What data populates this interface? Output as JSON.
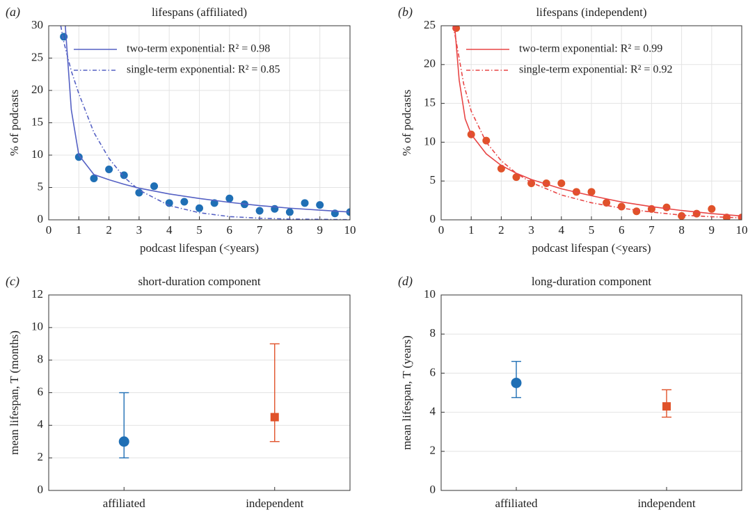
{
  "chart_data": [
    {
      "type": "scatter",
      "panel": "(a)",
      "title": "lifespans (affiliated)",
      "x_label": "podcast lifespan (<years)",
      "y_label": "% of podcasts",
      "xlim": [
        0,
        10
      ],
      "ylim": [
        0,
        30
      ],
      "xticks": [
        0,
        1,
        2,
        3,
        4,
        5,
        6,
        7,
        8,
        9,
        10
      ],
      "yticks": [
        0,
        5,
        10,
        15,
        20,
        25,
        30
      ],
      "grid": true,
      "legend": "upper right",
      "series": [
        {
          "kind": "points",
          "color": "#1f6fb5",
          "x": [
            0.5,
            1,
            1.5,
            2,
            2.5,
            3,
            3.5,
            4,
            4.5,
            5,
            5.5,
            6,
            6.5,
            7,
            7.5,
            8,
            8.5,
            9,
            9.5,
            10
          ],
          "values": [
            28.3,
            9.7,
            6.4,
            7.8,
            6.9,
            4.2,
            5.2,
            2.6,
            2.8,
            1.8,
            2.6,
            3.3,
            2.4,
            1.4,
            1.7,
            1.2,
            2.6,
            2.3,
            1.0,
            1.2
          ]
        },
        {
          "kind": "line",
          "name": "two-term exponential: R² = 0.98",
          "color": "#5561c4",
          "line_style": "solid",
          "x": [
            0.55,
            0.75,
            1,
            1.5,
            2,
            2.5,
            3,
            4,
            5,
            6,
            7,
            8,
            9,
            10
          ],
          "values": [
            30,
            17,
            10,
            7,
            6.2,
            5.5,
            4.9,
            4,
            3.3,
            2.7,
            2.2,
            1.8,
            1.5,
            1.2
          ]
        },
        {
          "kind": "line",
          "name": "single-term exponential: R² = 0.85",
          "color": "#5561c4",
          "line_style": "dashdot",
          "x": [
            0.4,
            0.5,
            0.75,
            1,
            1.5,
            2,
            2.5,
            3,
            4,
            5,
            6,
            7,
            8,
            10
          ],
          "values": [
            30,
            27.5,
            23,
            19.5,
            13.5,
            9.5,
            6.6,
            4.6,
            2.2,
            1.1,
            0.5,
            0.25,
            0.12,
            0.03
          ]
        }
      ]
    },
    {
      "type": "scatter",
      "panel": "(b)",
      "title": "lifespans (independent)",
      "x_label": "podcast lifespan (<years)",
      "y_label": "% of podcasts",
      "xlim": [
        0,
        10
      ],
      "ylim": [
        0,
        25
      ],
      "xticks": [
        0,
        1,
        2,
        3,
        4,
        5,
        6,
        7,
        8,
        9,
        10
      ],
      "yticks": [
        0,
        5,
        10,
        15,
        20,
        25
      ],
      "grid": true,
      "legend": "upper right",
      "series": [
        {
          "kind": "points",
          "color": "#e0522a",
          "x": [
            0.5,
            1,
            1.5,
            2,
            2.5,
            3,
            3.5,
            4,
            4.5,
            5,
            5.5,
            6,
            6.5,
            7,
            7.5,
            8,
            8.5,
            9,
            9.5,
            10
          ],
          "values": [
            24.7,
            11.0,
            10.2,
            6.6,
            5.5,
            4.7,
            4.7,
            4.7,
            3.6,
            3.6,
            2.2,
            1.7,
            1.1,
            1.4,
            1.6,
            0.5,
            0.8,
            1.4,
            0.3,
            0.3
          ]
        },
        {
          "kind": "line",
          "name": "two-term exponential: R² = 0.99",
          "color": "#e84545",
          "line_style": "solid",
          "x": [
            0.45,
            0.6,
            0.8,
            1,
            1.5,
            2,
            2.5,
            3,
            4,
            5,
            6,
            7,
            8,
            9,
            10
          ],
          "values": [
            25,
            18,
            13,
            11,
            8.5,
            7,
            6,
            5.2,
            4,
            3.1,
            2.3,
            1.7,
            1.2,
            0.8,
            0.5
          ]
        },
        {
          "kind": "line",
          "name": "single-term exponential: R² = 0.92",
          "color": "#e84545",
          "line_style": "dashdot",
          "x": [
            0.4,
            0.5,
            0.75,
            1,
            1.5,
            2,
            2.5,
            3,
            4,
            5,
            6,
            7,
            8,
            9,
            10
          ],
          "values": [
            25,
            23,
            17.5,
            14,
            10,
            7.6,
            6.0,
            4.8,
            3.2,
            2.2,
            1.5,
            1.0,
            0.6,
            0.4,
            0.25
          ]
        }
      ]
    },
    {
      "type": "errorbar",
      "panel": "(c)",
      "title": "short-duration component",
      "y_label": "mean lifespan, T (months)",
      "categories": [
        "affiliated",
        "independent"
      ],
      "values": [
        3,
        4.5
      ],
      "lower": [
        2,
        3
      ],
      "upper": [
        6,
        9
      ],
      "colors": [
        "#1f6fb5",
        "#e0522a"
      ],
      "markers": [
        "circle",
        "square"
      ],
      "ylim": [
        0,
        12
      ],
      "yticks": [
        0,
        2,
        4,
        6,
        8,
        10,
        12
      ],
      "grid": true
    },
    {
      "type": "errorbar",
      "panel": "(d)",
      "title": "long-duration component",
      "y_label": "mean lifespan, T (years)",
      "categories": [
        "affiliated",
        "independent"
      ],
      "values": [
        5.5,
        4.3
      ],
      "lower": [
        4.75,
        3.75
      ],
      "upper": [
        6.6,
        5.15
      ],
      "colors": [
        "#1f6fb5",
        "#e0522a"
      ],
      "markers": [
        "circle",
        "square"
      ],
      "ylim": [
        0,
        10
      ],
      "yticks": [
        0,
        2,
        4,
        6,
        8,
        10
      ],
      "grid": true
    }
  ]
}
